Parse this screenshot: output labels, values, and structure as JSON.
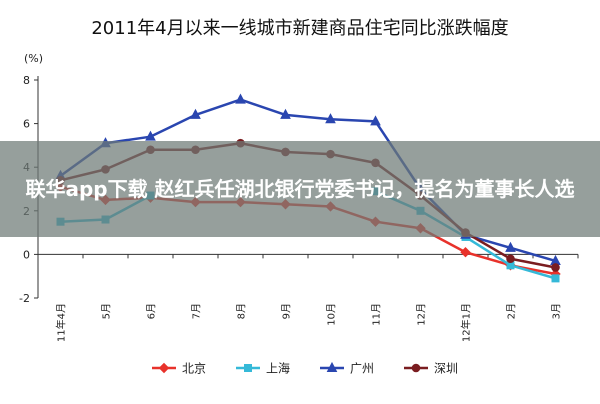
{
  "chart_data": {
    "type": "line",
    "title": "2011年4月以来一线城市新建商品住宅同比涨跌幅度",
    "ylabel": "(%)",
    "xlabel": "",
    "ylim": [
      -2,
      8
    ],
    "yticks": [
      "-2",
      "0",
      "2",
      "4",
      "6",
      "8"
    ],
    "categories": [
      "11年4月",
      "5月",
      "6月",
      "7月",
      "8月",
      "9月",
      "10月",
      "11月",
      "12月",
      "12年1月",
      "2月",
      "3月"
    ],
    "grid": false,
    "legend_position": "bottom",
    "series": [
      {
        "name": "北京",
        "color": "#e8322b",
        "marker": "diamond",
        "values": [
          3.1,
          2.5,
          2.6,
          2.4,
          2.4,
          2.3,
          2.2,
          1.5,
          1.2,
          0.1,
          -0.5,
          -0.9
        ]
      },
      {
        "name": "上海",
        "color": "#35b9d8",
        "marker": "square",
        "values": [
          1.5,
          1.6,
          2.7,
          null,
          null,
          null,
          null,
          2.9,
          2.0,
          0.8,
          -0.5,
          -1.1
        ]
      },
      {
        "name": "广州",
        "color": "#2a46b0",
        "marker": "triangle",
        "values": [
          3.6,
          5.1,
          5.4,
          6.4,
          7.1,
          6.4,
          6.2,
          6.1,
          3.0,
          0.9,
          0.3,
          -0.3
        ]
      },
      {
        "name": "深圳",
        "color": "#7a1d20",
        "marker": "circle",
        "values": [
          3.4,
          3.9,
          4.8,
          4.8,
          5.1,
          4.7,
          4.6,
          4.2,
          2.7,
          1.0,
          -0.2,
          -0.6
        ]
      }
    ]
  },
  "overlay": {
    "caption": "联华app下载 赵红兵任湖北银行党委书记，提名为董事长人选"
  }
}
